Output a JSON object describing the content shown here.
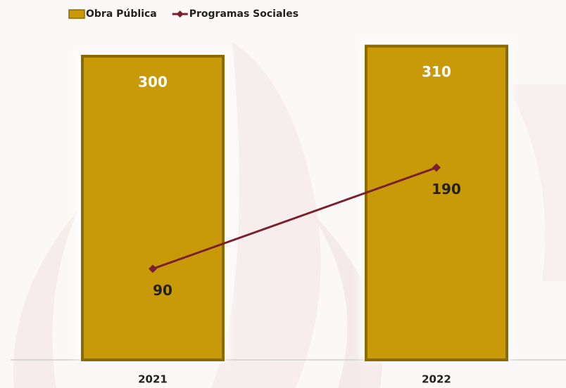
{
  "chart_data": {
    "type": "combo",
    "categories": [
      "2021",
      "2022"
    ],
    "series": [
      {
        "name": "Obra Pública",
        "type": "bar",
        "color": "#c99a07",
        "values": [
          300,
          310
        ]
      },
      {
        "name": "Programas Sociales",
        "type": "line",
        "color": "#7a1f2e",
        "values": [
          90,
          190
        ]
      }
    ],
    "ylim": [
      0,
      350
    ]
  }
}
